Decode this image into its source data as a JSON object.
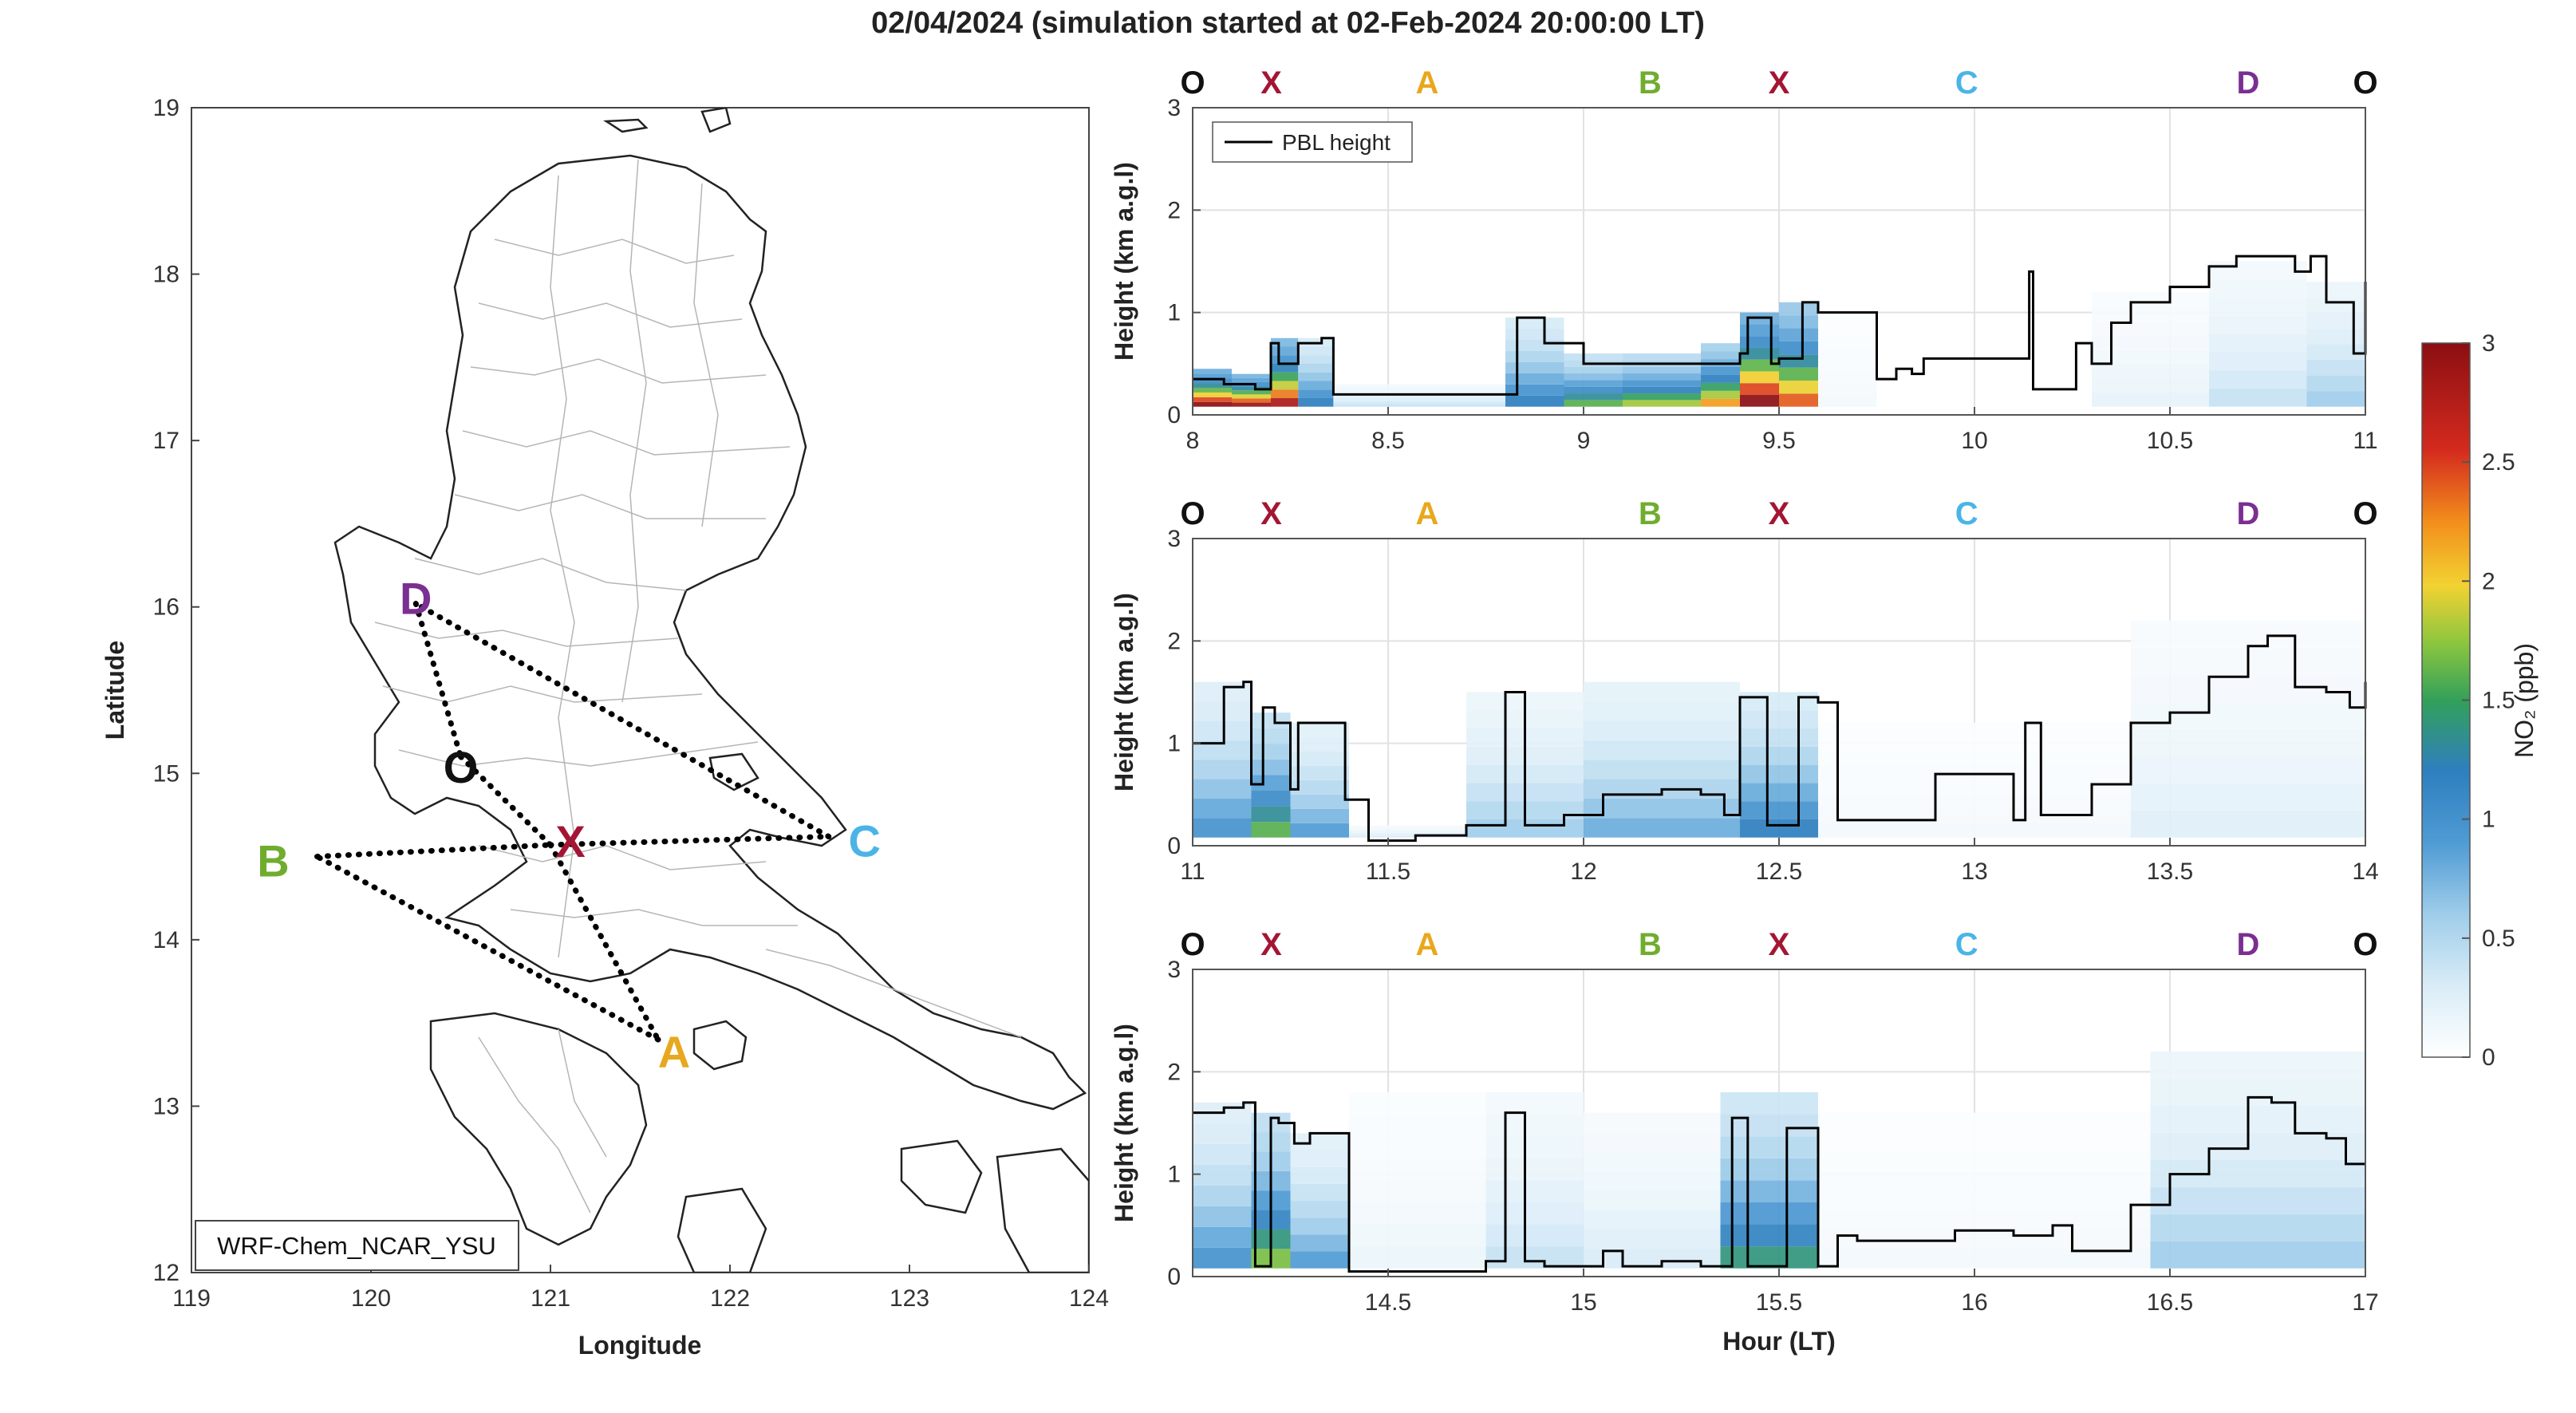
{
  "title": "02/04/2024 (simulation started at 02-Feb-2024 20:00:00 LT)",
  "colors": {
    "A": "#e8a81e",
    "B": "#70ad2e",
    "C": "#4bb4e6",
    "D": "#7b2f91",
    "X": "#a41534",
    "O": "#111111",
    "pbl": "#000000"
  },
  "map": {
    "xlabel": "Longitude",
    "ylabel": "Latitude",
    "xlim": [
      119,
      124
    ],
    "ylim": [
      12,
      19
    ],
    "xticks": [
      "119",
      "120",
      "121",
      "122",
      "123",
      "124"
    ],
    "yticks": [
      "12",
      "13",
      "14",
      "15",
      "16",
      "17",
      "18",
      "19"
    ],
    "model_label": "WRF-Chem_NCAR_YSU",
    "points": [
      {
        "label": "D",
        "lon": 120.25,
        "lat": 16.02
      },
      {
        "label": "O",
        "lon": 120.5,
        "lat": 15.1
      },
      {
        "label": "X",
        "lon": 121.0,
        "lat": 14.57
      },
      {
        "label": "B",
        "lon": 119.7,
        "lat": 14.5
      },
      {
        "label": "C",
        "lon": 122.55,
        "lat": 14.62
      },
      {
        "label": "A",
        "lon": 121.6,
        "lat": 13.4
      }
    ],
    "routes": [
      [
        "D",
        "O"
      ],
      [
        "O",
        "X"
      ],
      [
        "X",
        "A"
      ],
      [
        "A",
        "B"
      ],
      [
        "B",
        "X"
      ],
      [
        "X",
        "C"
      ],
      [
        "C",
        "D"
      ]
    ]
  },
  "route_labels": [
    "O",
    "X",
    "A",
    "B",
    "X",
    "C",
    "D",
    "O"
  ],
  "route_label_fracs": [
    0.0,
    0.067,
    0.2,
    0.39,
    0.5,
    0.66,
    0.9,
    1.0
  ],
  "colorbar": {
    "label": "NO₂ (ppb)",
    "min": 0,
    "max": 3,
    "ticks": [
      "0",
      "0.5",
      "1",
      "1.5",
      "2",
      "2.5",
      "3"
    ]
  },
  "chart_data": [
    {
      "type": "heatmap",
      "xlim": [
        8,
        11
      ],
      "ylim": [
        0,
        3
      ],
      "xticks": [
        "8",
        "8.5",
        "9",
        "9.5",
        "10",
        "10.5",
        "11"
      ],
      "yticks": [
        "0",
        "1",
        "2",
        "3"
      ],
      "ylabel": "Height (km a.g.l)",
      "legend": "PBL height",
      "legend_position": "top-left",
      "pbl": {
        "x": [
          8.0,
          8.08,
          8.16,
          8.2,
          8.22,
          8.27,
          8.33,
          8.36,
          8.47,
          8.5,
          8.8,
          8.83,
          8.9,
          9.0,
          9.4,
          9.42,
          9.48,
          9.5,
          9.56,
          9.6,
          9.67,
          9.75,
          9.8,
          9.84,
          9.87,
          10.0,
          10.14,
          10.15,
          10.2,
          10.26,
          10.3,
          10.35,
          10.4,
          10.5,
          10.6,
          10.67,
          10.76,
          10.82,
          10.86,
          10.9,
          10.97,
          11.0
        ],
        "y": [
          0.35,
          0.3,
          0.25,
          0.7,
          0.5,
          0.7,
          0.75,
          0.2,
          0.2,
          0.2,
          0.2,
          0.95,
          0.7,
          0.5,
          0.6,
          0.95,
          0.5,
          0.55,
          1.1,
          1.0,
          1.0,
          0.35,
          0.45,
          0.4,
          0.55,
          0.55,
          1.4,
          0.25,
          0.25,
          0.7,
          0.5,
          0.9,
          1.1,
          1.25,
          1.45,
          1.55,
          1.55,
          1.4,
          1.55,
          1.1,
          0.6,
          1.3
        ]
      },
      "columns": [
        {
          "x0": 8.0,
          "x1": 8.1,
          "top": 0.45,
          "max": 3.0
        },
        {
          "x0": 8.1,
          "x1": 8.2,
          "top": 0.4,
          "max": 2.9
        },
        {
          "x0": 8.2,
          "x1": 8.27,
          "top": 0.75,
          "max": 2.8
        },
        {
          "x0": 8.27,
          "x1": 8.36,
          "top": 0.75,
          "max": 1.2
        },
        {
          "x0": 8.36,
          "x1": 8.8,
          "top": 0.3,
          "max": 0.4
        },
        {
          "x0": 8.8,
          "x1": 8.95,
          "top": 0.95,
          "max": 1.2
        },
        {
          "x0": 8.95,
          "x1": 9.1,
          "top": 0.6,
          "max": 1.6
        },
        {
          "x0": 9.1,
          "x1": 9.3,
          "top": 0.6,
          "max": 1.8
        },
        {
          "x0": 9.3,
          "x1": 9.4,
          "top": 0.7,
          "max": 2.2
        },
        {
          "x0": 9.4,
          "x1": 9.5,
          "top": 1.0,
          "max": 3.0
        },
        {
          "x0": 9.5,
          "x1": 9.6,
          "top": 1.1,
          "max": 2.4
        },
        {
          "x0": 9.6,
          "x1": 9.75,
          "top": 1.0,
          "max": 0.1
        },
        {
          "x0": 10.3,
          "x1": 10.6,
          "top": 1.2,
          "max": 0.2
        },
        {
          "x0": 10.6,
          "x1": 10.85,
          "top": 1.5,
          "max": 0.4
        },
        {
          "x0": 10.85,
          "x1": 11.0,
          "top": 1.3,
          "max": 0.6
        }
      ]
    },
    {
      "type": "heatmap",
      "xlim": [
        11,
        14
      ],
      "ylim": [
        0,
        3
      ],
      "xticks": [
        "11",
        "11.5",
        "12",
        "12.5",
        "13",
        "13.5",
        "14"
      ],
      "yticks": [
        "0",
        "1",
        "2",
        "3"
      ],
      "ylabel": "Height (km a.g.l)",
      "pbl": {
        "x": [
          11.0,
          11.08,
          11.13,
          11.15,
          11.18,
          11.21,
          11.25,
          11.27,
          11.37,
          11.39,
          11.45,
          11.52,
          11.57,
          11.7,
          11.8,
          11.85,
          11.9,
          11.95,
          12.05,
          12.2,
          12.3,
          12.36,
          12.4,
          12.47,
          12.5,
          12.55,
          12.6,
          12.65,
          12.8,
          12.9,
          13.1,
          13.13,
          13.17,
          13.3,
          13.4,
          13.5,
          13.6,
          13.7,
          13.75,
          13.82,
          13.9,
          13.96,
          14.0
        ],
        "y": [
          1.0,
          1.55,
          1.6,
          0.6,
          1.35,
          1.2,
          0.55,
          1.2,
          1.2,
          0.45,
          0.05,
          0.05,
          0.1,
          0.2,
          1.5,
          0.2,
          0.2,
          0.3,
          0.5,
          0.55,
          0.5,
          0.3,
          1.45,
          0.2,
          0.2,
          1.45,
          1.4,
          0.25,
          0.25,
          0.7,
          0.25,
          1.2,
          0.3,
          0.6,
          1.2,
          1.3,
          1.65,
          1.95,
          2.05,
          1.55,
          1.5,
          1.35,
          1.6
        ]
      },
      "columns": [
        {
          "x0": 11.0,
          "x1": 11.15,
          "top": 1.6,
          "max": 1.0
        },
        {
          "x0": 11.15,
          "x1": 11.25,
          "top": 1.3,
          "max": 1.6
        },
        {
          "x0": 11.25,
          "x1": 11.4,
          "top": 1.2,
          "max": 0.9
        },
        {
          "x0": 11.4,
          "x1": 11.7,
          "top": 0.2,
          "max": 0.3
        },
        {
          "x0": 11.7,
          "x1": 12.0,
          "top": 1.5,
          "max": 0.6
        },
        {
          "x0": 12.0,
          "x1": 12.4,
          "top": 1.6,
          "max": 0.8
        },
        {
          "x0": 12.4,
          "x1": 12.6,
          "top": 1.5,
          "max": 1.2
        },
        {
          "x0": 12.6,
          "x1": 13.4,
          "top": 1.2,
          "max": 0.1
        },
        {
          "x0": 13.4,
          "x1": 14.0,
          "top": 2.2,
          "max": 0.25
        }
      ]
    },
    {
      "type": "heatmap",
      "xlim": [
        14,
        17
      ],
      "ylim": [
        0,
        3
      ],
      "xticks": [
        "14.5",
        "15",
        "15.5",
        "16",
        "16.5",
        "17"
      ],
      "yticks": [
        "0",
        "1",
        "2",
        "3"
      ],
      "ylabel": "Height (km a.g.l)",
      "xlabel": "Hour (LT)",
      "pbl": {
        "x": [
          14.0,
          14.08,
          14.13,
          14.16,
          14.2,
          14.22,
          14.26,
          14.3,
          14.35,
          14.4,
          14.48,
          14.6,
          14.75,
          14.8,
          14.85,
          14.9,
          15.0,
          15.05,
          15.1,
          15.2,
          15.3,
          15.38,
          15.42,
          15.47,
          15.52,
          15.55,
          15.6,
          15.65,
          15.7,
          15.8,
          15.95,
          16.0,
          16.1,
          16.2,
          16.25,
          16.3,
          16.4,
          16.5,
          16.6,
          16.7,
          16.76,
          16.82,
          16.9,
          16.95,
          17.0
        ],
        "y": [
          1.6,
          1.65,
          1.7,
          0.1,
          1.55,
          1.5,
          1.3,
          1.4,
          1.4,
          0.05,
          0.05,
          0.05,
          0.15,
          1.6,
          0.15,
          0.1,
          0.1,
          0.25,
          0.1,
          0.15,
          0.1,
          1.55,
          0.1,
          0.1,
          1.45,
          1.45,
          0.1,
          0.4,
          0.35,
          0.35,
          0.45,
          0.45,
          0.4,
          0.5,
          0.25,
          0.25,
          0.7,
          1.0,
          1.25,
          1.75,
          1.7,
          1.4,
          1.35,
          1.1,
          1.1
        ]
      },
      "columns": [
        {
          "x0": 14.0,
          "x1": 14.15,
          "top": 1.7,
          "max": 1.0
        },
        {
          "x0": 14.15,
          "x1": 14.25,
          "top": 1.6,
          "max": 1.7
        },
        {
          "x0": 14.25,
          "x1": 14.4,
          "top": 1.4,
          "max": 0.9
        },
        {
          "x0": 14.4,
          "x1": 14.75,
          "top": 1.8,
          "max": 0.15
        },
        {
          "x0": 14.75,
          "x1": 15.0,
          "top": 1.8,
          "max": 0.4
        },
        {
          "x0": 15.0,
          "x1": 15.35,
          "top": 1.6,
          "max": 0.3
        },
        {
          "x0": 15.35,
          "x1": 15.6,
          "top": 1.8,
          "max": 1.4
        },
        {
          "x0": 15.6,
          "x1": 16.45,
          "top": 1.6,
          "max": 0.1
        },
        {
          "x0": 16.45,
          "x1": 17.0,
          "top": 2.2,
          "max": 0.6
        }
      ]
    }
  ]
}
